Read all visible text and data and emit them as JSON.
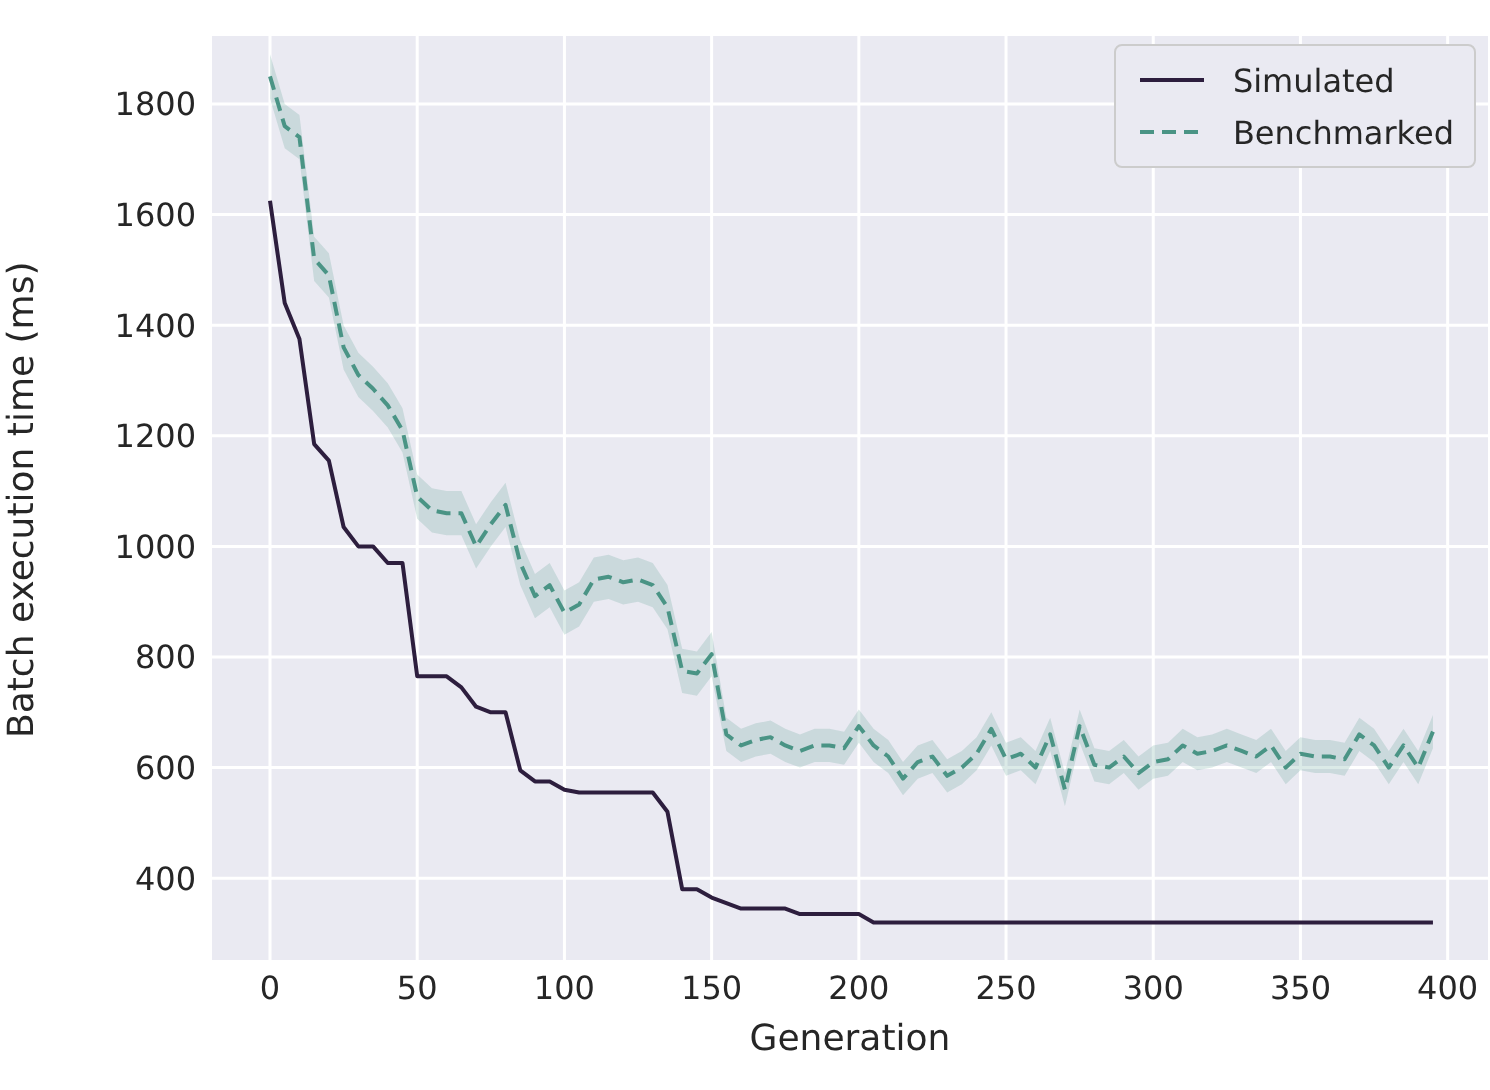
{
  "chart_data": {
    "type": "line",
    "xlabel": "Generation",
    "ylabel": "Batch execution time (ms)",
    "x": [
      0,
      5,
      10,
      15,
      20,
      25,
      30,
      35,
      40,
      45,
      50,
      55,
      60,
      65,
      70,
      75,
      80,
      85,
      90,
      95,
      100,
      105,
      110,
      115,
      120,
      125,
      130,
      135,
      140,
      145,
      150,
      155,
      160,
      165,
      170,
      175,
      180,
      185,
      190,
      195,
      200,
      205,
      210,
      215,
      220,
      225,
      230,
      235,
      240,
      245,
      250,
      255,
      260,
      265,
      270,
      275,
      280,
      285,
      290,
      295,
      300,
      305,
      310,
      315,
      320,
      325,
      330,
      335,
      340,
      345,
      350,
      355,
      360,
      365,
      370,
      375,
      380,
      385,
      390,
      395
    ],
    "xlim": [
      -19.7,
      413.7
    ],
    "xticks": [
      0,
      50,
      100,
      150,
      200,
      250,
      300,
      350,
      400
    ],
    "ylim": [
      252,
      1923
    ],
    "yticks": [
      400,
      600,
      800,
      1000,
      1200,
      1400,
      1600,
      1800
    ],
    "grid": true,
    "legend": "top right",
    "series": [
      {
        "name": "Simulated",
        "color": "#2d1e3e",
        "line_style": "solid",
        "values": [
          1625,
          1440,
          1375,
          1185,
          1155,
          1035,
          1000,
          1000,
          970,
          970,
          765,
          765,
          765,
          745,
          710,
          700,
          700,
          595,
          575,
          575,
          560,
          555,
          555,
          555,
          555,
          555,
          555,
          520,
          380,
          380,
          365,
          355,
          345,
          345,
          345,
          345,
          335,
          335,
          335,
          335,
          335,
          320,
          320,
          320,
          320,
          320,
          320,
          320,
          320,
          320,
          320,
          320,
          320,
          320,
          320,
          320,
          320,
          320,
          320,
          320,
          320,
          320,
          320,
          320,
          320,
          320,
          320,
          320,
          320,
          320,
          320,
          320,
          320,
          320,
          320,
          320,
          320,
          320,
          320,
          320
        ]
      },
      {
        "name": "Benchmarked",
        "color": "#4a9485",
        "line_style": "dashed",
        "values": [
          1850,
          1760,
          1740,
          1520,
          1490,
          1360,
          1310,
          1285,
          1255,
          1210,
          1090,
          1065,
          1060,
          1060,
          1000,
          1040,
          1075,
          970,
          910,
          930,
          880,
          895,
          940,
          945,
          935,
          940,
          930,
          890,
          775,
          770,
          805,
          660,
          640,
          650,
          655,
          640,
          630,
          640,
          640,
          635,
          675,
          640,
          620,
          580,
          610,
          620,
          585,
          600,
          625,
          670,
          615,
          625,
          600,
          660,
          560,
          675,
          605,
          600,
          620,
          590,
          610,
          615,
          640,
          625,
          630,
          640,
          630,
          620,
          640,
          600,
          625,
          620,
          620,
          615,
          660,
          640,
          600,
          640,
          600,
          665
        ],
        "lower": [
          1810,
          1720,
          1700,
          1480,
          1450,
          1320,
          1270,
          1245,
          1215,
          1170,
          1050,
          1025,
          1020,
          1020,
          960,
          1000,
          1035,
          930,
          870,
          890,
          840,
          855,
          900,
          905,
          895,
          900,
          890,
          850,
          735,
          730,
          765,
          630,
          610,
          620,
          625,
          610,
          600,
          610,
          610,
          605,
          645,
          610,
          590,
          550,
          580,
          590,
          555,
          570,
          595,
          640,
          585,
          595,
          570,
          630,
          530,
          645,
          575,
          570,
          590,
          560,
          580,
          585,
          610,
          595,
          600,
          610,
          600,
          590,
          610,
          570,
          595,
          590,
          590,
          585,
          630,
          610,
          570,
          610,
          570,
          635
        ],
        "upper": [
          1890,
          1800,
          1780,
          1560,
          1530,
          1400,
          1350,
          1325,
          1295,
          1250,
          1130,
          1105,
          1100,
          1100,
          1040,
          1080,
          1115,
          1010,
          950,
          970,
          920,
          935,
          980,
          985,
          975,
          980,
          970,
          930,
          815,
          810,
          845,
          690,
          670,
          680,
          685,
          670,
          660,
          670,
          670,
          665,
          705,
          670,
          650,
          610,
          640,
          650,
          615,
          630,
          655,
          700,
          645,
          655,
          630,
          690,
          590,
          705,
          635,
          630,
          650,
          620,
          640,
          645,
          670,
          655,
          660,
          670,
          660,
          650,
          670,
          630,
          655,
          650,
          650,
          645,
          690,
          670,
          630,
          670,
          630,
          695
        ]
      }
    ]
  }
}
